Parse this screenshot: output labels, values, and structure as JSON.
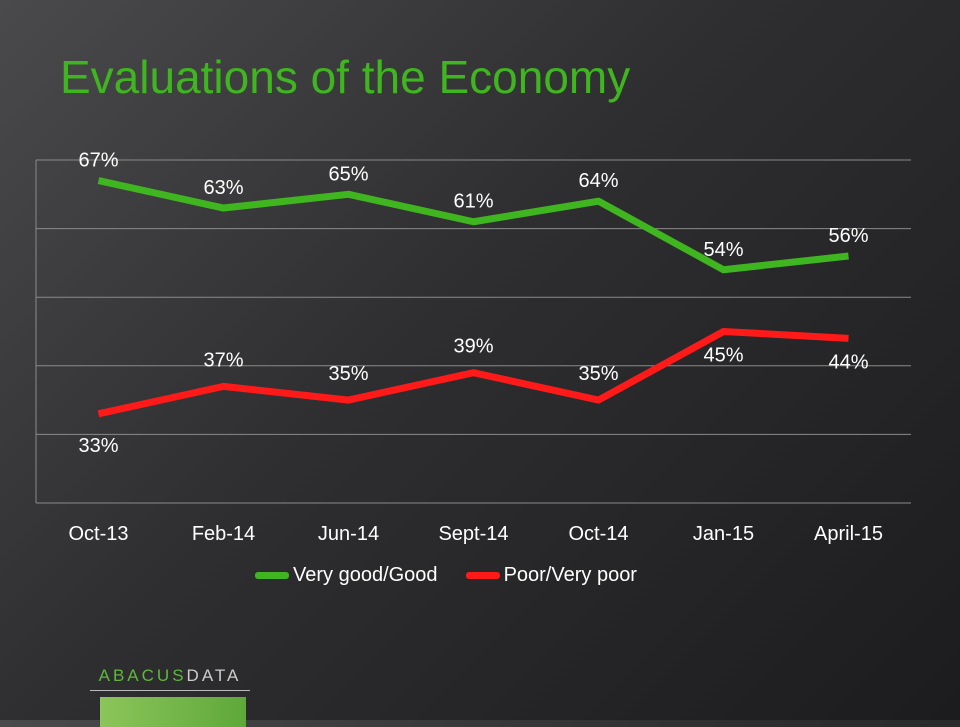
{
  "chart_data": {
    "type": "line",
    "title": "Evaluations of the Economy",
    "categories": [
      "Oct-13",
      "Feb-14",
      "Jun-14",
      "Sept-14",
      "Oct-14",
      "Jan-15",
      "April-15"
    ],
    "series": [
      {
        "name": "Very good/Good",
        "values": [
          67,
          63,
          65,
          61,
          64,
          54,
          56
        ],
        "color": "#3fb51f"
      },
      {
        "name": "Poor/Very poor",
        "values": [
          33,
          37,
          35,
          39,
          35,
          45,
          44
        ],
        "color": "#ff1a1a"
      }
    ],
    "ylim": [
      20,
      70
    ],
    "grid": true,
    "legend": "bottom",
    "xlabel": "",
    "ylabel": ""
  },
  "logo": {
    "part1": "ABACUS",
    "part2": "DATA"
  }
}
